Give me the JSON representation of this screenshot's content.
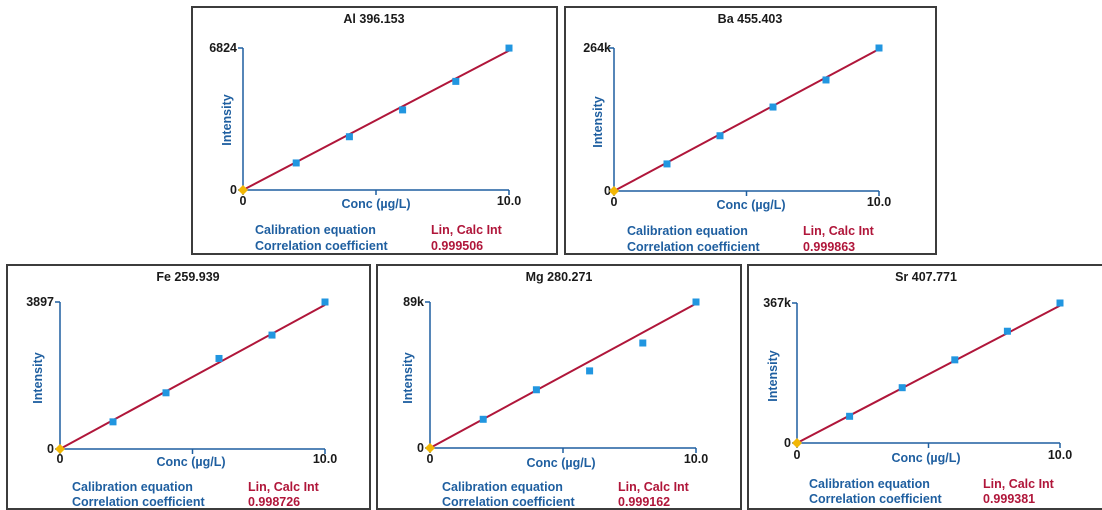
{
  "colors": {
    "fit_line": "#b0163a",
    "points": "#2196e0",
    "origin_marker": "#f2b705",
    "axis": "#1f5fa0",
    "label_blue": "#1f5fa0",
    "value_red": "#b0163a"
  },
  "labels": {
    "eq": "Calibration equation",
    "cc": "Correlation coefficient"
  },
  "chart_data": [
    {
      "type": "scatter",
      "title": "Al 396.153",
      "xlabel": "Conc (µg/L)",
      "ylabel": "Intensity",
      "xlim": [
        0,
        10.0
      ],
      "ylim": [
        0,
        6824
      ],
      "x_ticks": [
        "0",
        "10.0"
      ],
      "y_ticks": [
        "0",
        "6824"
      ],
      "series": [
        {
          "points": [
            [
              0,
              0
            ],
            [
              2,
              1300
            ],
            [
              4,
              2560
            ],
            [
              6,
              3850
            ],
            [
              8,
              5220
            ],
            [
              10,
              6820
            ]
          ]
        }
      ],
      "fit": {
        "x": [
          0,
          10
        ],
        "y": [
          0,
          6700
        ]
      },
      "calibration_equation": "Lin, Calc Int",
      "correlation_coefficient": "0.999506"
    },
    {
      "type": "scatter",
      "title": "Ba 455.403",
      "xlabel": "Conc (µg/L)",
      "ylabel": "Intensity",
      "xlim": [
        0,
        10.0
      ],
      "ylim": [
        0,
        264000
      ],
      "x_ticks": [
        "0",
        "10.0"
      ],
      "y_ticks": [
        "0",
        "264k"
      ],
      "series": [
        {
          "points": [
            [
              0,
              0
            ],
            [
              2,
              50000
            ],
            [
              4,
              102000
            ],
            [
              6,
              155000
            ],
            [
              8,
              205000
            ],
            [
              10,
              264000
            ]
          ]
        }
      ],
      "fit": {
        "x": [
          0,
          10
        ],
        "y": [
          0,
          262000
        ]
      },
      "calibration_equation": "Lin, Calc Int",
      "correlation_coefficient": "0.999863"
    },
    {
      "type": "scatter",
      "title": "Fe 259.939",
      "xlabel": "Conc (µg/L)",
      "ylabel": "Intensity",
      "xlim": [
        0,
        10.0
      ],
      "ylim": [
        0,
        3897
      ],
      "x_ticks": [
        "0",
        "10.0"
      ],
      "y_ticks": [
        "0",
        "3897"
      ],
      "series": [
        {
          "points": [
            [
              0,
              0
            ],
            [
              2,
              720
            ],
            [
              4,
              1490
            ],
            [
              6,
              2400
            ],
            [
              8,
              3020
            ],
            [
              10,
              3897
            ]
          ]
        }
      ],
      "fit": {
        "x": [
          0,
          10
        ],
        "y": [
          0,
          3820
        ]
      },
      "calibration_equation": "Lin, Calc Int",
      "correlation_coefficient": "0.998726"
    },
    {
      "type": "scatter",
      "title": "Mg 280.271",
      "xlabel": "Conc (µg/L)",
      "ylabel": "Intensity",
      "xlim": [
        0,
        10.0
      ],
      "ylim": [
        0,
        89000
      ],
      "x_ticks": [
        "0",
        "10.0"
      ],
      "y_ticks": [
        "0",
        "89k"
      ],
      "series": [
        {
          "points": [
            [
              0,
              0
            ],
            [
              2,
              17500
            ],
            [
              4,
              35500
            ],
            [
              6,
              47000
            ],
            [
              8,
              64000
            ],
            [
              10,
              89000
            ]
          ]
        }
      ],
      "fit": {
        "x": [
          0,
          10
        ],
        "y": [
          0,
          88000
        ]
      },
      "calibration_equation": "Lin, Calc Int",
      "correlation_coefficient": "0.999162"
    },
    {
      "type": "scatter",
      "title": "Sr 407.771",
      "xlabel": "Conc (µg/L)",
      "ylabel": "Intensity",
      "xlim": [
        0,
        10.0
      ],
      "ylim": [
        0,
        367000
      ],
      "x_ticks": [
        "0",
        "10.0"
      ],
      "y_ticks": [
        "0",
        "367k"
      ],
      "series": [
        {
          "points": [
            [
              0,
              0
            ],
            [
              2,
              70000
            ],
            [
              4,
              145000
            ],
            [
              6,
              218000
            ],
            [
              8,
              293000
            ],
            [
              10,
              367000
            ]
          ]
        }
      ],
      "fit": {
        "x": [
          0,
          10
        ],
        "y": [
          0,
          360000
        ]
      },
      "calibration_equation": "Lin, Calc Int",
      "correlation_coefficient": "0.999381"
    }
  ]
}
